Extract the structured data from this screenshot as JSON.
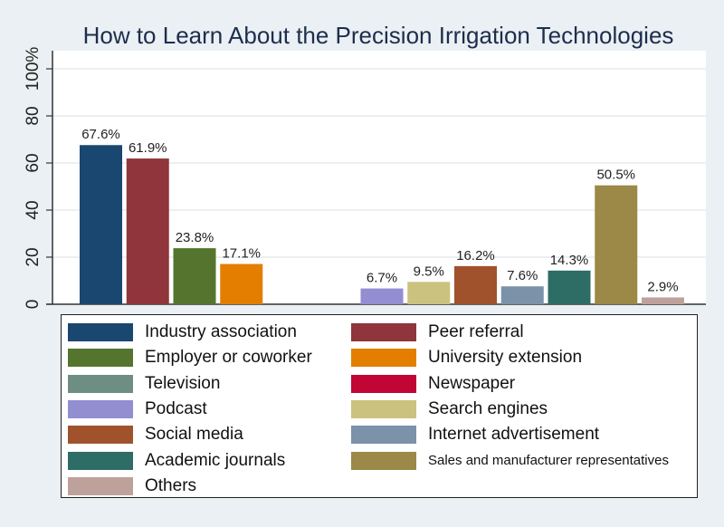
{
  "chart_data": {
    "type": "bar",
    "title": "How to Learn About the Precision Irrigation Technologies",
    "xlabel": "",
    "ylabel": "",
    "ylim": [
      0,
      100
    ],
    "yticks": [
      "0",
      "20",
      "40",
      "60",
      "80",
      "100%"
    ],
    "ytick_values": [
      0,
      20,
      40,
      60,
      80,
      100
    ],
    "grid": true,
    "legend_position": "bottom",
    "categories": [
      "Industry association",
      "Peer referral",
      "Employer or coworker",
      "University extension",
      "Television",
      "Newspaper",
      "Podcast",
      "Search engines",
      "Social media",
      "Internet advertisement",
      "Academic journals",
      "Sales and manufacturer representatives",
      "Others"
    ],
    "values": [
      67.6,
      61.9,
      23.8,
      17.1,
      0,
      0,
      6.7,
      9.5,
      16.2,
      7.6,
      14.3,
      50.5,
      2.9
    ],
    "labels": [
      "67.6%",
      "61.9%",
      "23.8%",
      "17.1%",
      "",
      "",
      "6.7%",
      "9.5%",
      "16.2%",
      "7.6%",
      "14.3%",
      "50.5%",
      "2.9%"
    ],
    "colors": [
      "#1a476f",
      "#90353b",
      "#55752f",
      "#e37e00",
      "#6e8e84",
      "#c10534",
      "#938dd2",
      "#cac27e",
      "#a0522d",
      "#7b92a8",
      "#2d6d66",
      "#9c8847",
      "#bfa19c"
    ]
  }
}
